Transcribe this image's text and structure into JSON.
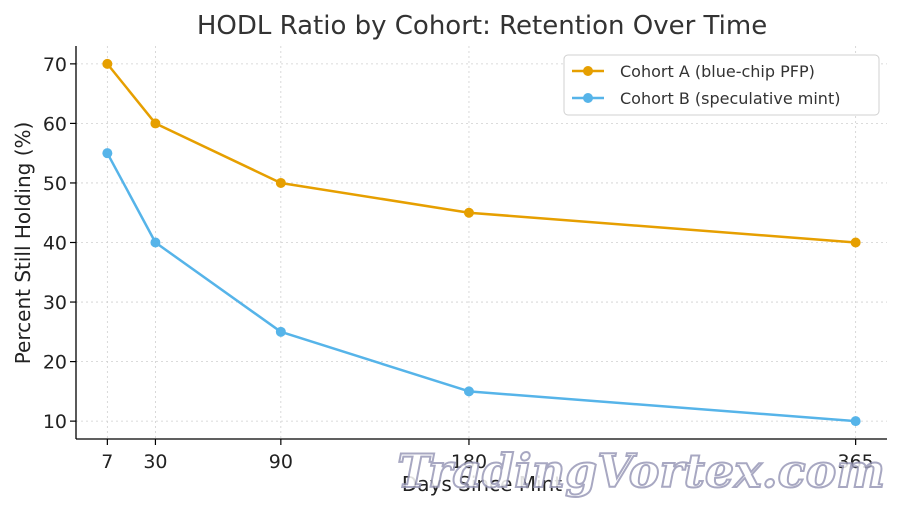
{
  "chart_data": {
    "type": "line",
    "title": "HODL Ratio by Cohort: Retention Over Time",
    "xlabel": "Days Since Mint",
    "ylabel": "Percent Still Holding (%)",
    "x": [
      7,
      30,
      90,
      180,
      365
    ],
    "xticks": [
      "7",
      "30",
      "90",
      "180",
      "365"
    ],
    "yticks": [
      "10",
      "20",
      "30",
      "40",
      "50",
      "60",
      "70"
    ],
    "xlim": [
      -8,
      380
    ],
    "ylim": [
      7,
      73
    ],
    "grid": true,
    "legend_position": "top-right",
    "series": [
      {
        "name": "Cohort A (blue-chip PFP)",
        "color": "#E69F00",
        "values": [
          70,
          60,
          50,
          45,
          40
        ]
      },
      {
        "name": "Cohort B (speculative mint)",
        "color": "#56B4E9",
        "values": [
          55,
          40,
          25,
          15,
          10
        ]
      }
    ]
  },
  "watermark": "TradingVortex.com"
}
